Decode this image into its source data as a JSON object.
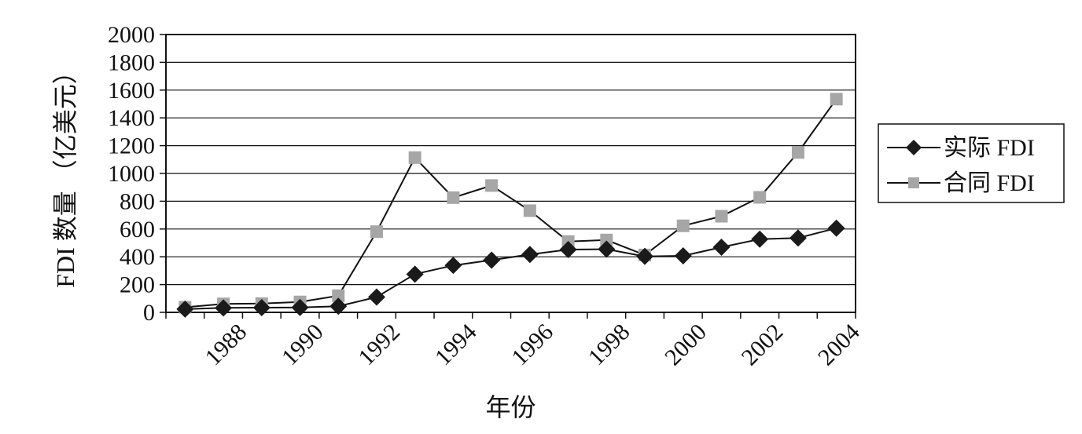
{
  "chart_data": {
    "type": "line",
    "title": "",
    "xlabel": "年份",
    "ylabel": "FDI 数量 （亿美元）",
    "ylim": [
      0,
      2000
    ],
    "yticks": [
      "0",
      "200",
      "400",
      "600",
      "800",
      "1000",
      "1200",
      "1400",
      "1600",
      "1800",
      "2000"
    ],
    "x": [
      1987,
      1988,
      1989,
      1990,
      1991,
      1992,
      1993,
      1994,
      1995,
      1996,
      1997,
      1998,
      1999,
      2000,
      2001,
      2002,
      2003,
      2004
    ],
    "xtick_labels": [
      "1988",
      "1990",
      "1992",
      "1994",
      "1996",
      "1998",
      "2000",
      "2002",
      "2004"
    ],
    "grid": true,
    "legend_position": "right",
    "series": [
      {
        "name": "实际 FDI",
        "marker": "diamond",
        "color": "#1a1a1a",
        "values": [
          23,
          32,
          34,
          35,
          44,
          110,
          275,
          338,
          376,
          417,
          452,
          455,
          403,
          407,
          469,
          527,
          535,
          606
        ]
      },
      {
        "name": "合同 FDI",
        "marker": "square",
        "color": "#a6a6a6",
        "values": [
          37,
          61,
          63,
          75,
          120,
          581,
          1114,
          826,
          913,
          732,
          510,
          521,
          413,
          623,
          692,
          828,
          1151,
          1535
        ]
      }
    ]
  }
}
